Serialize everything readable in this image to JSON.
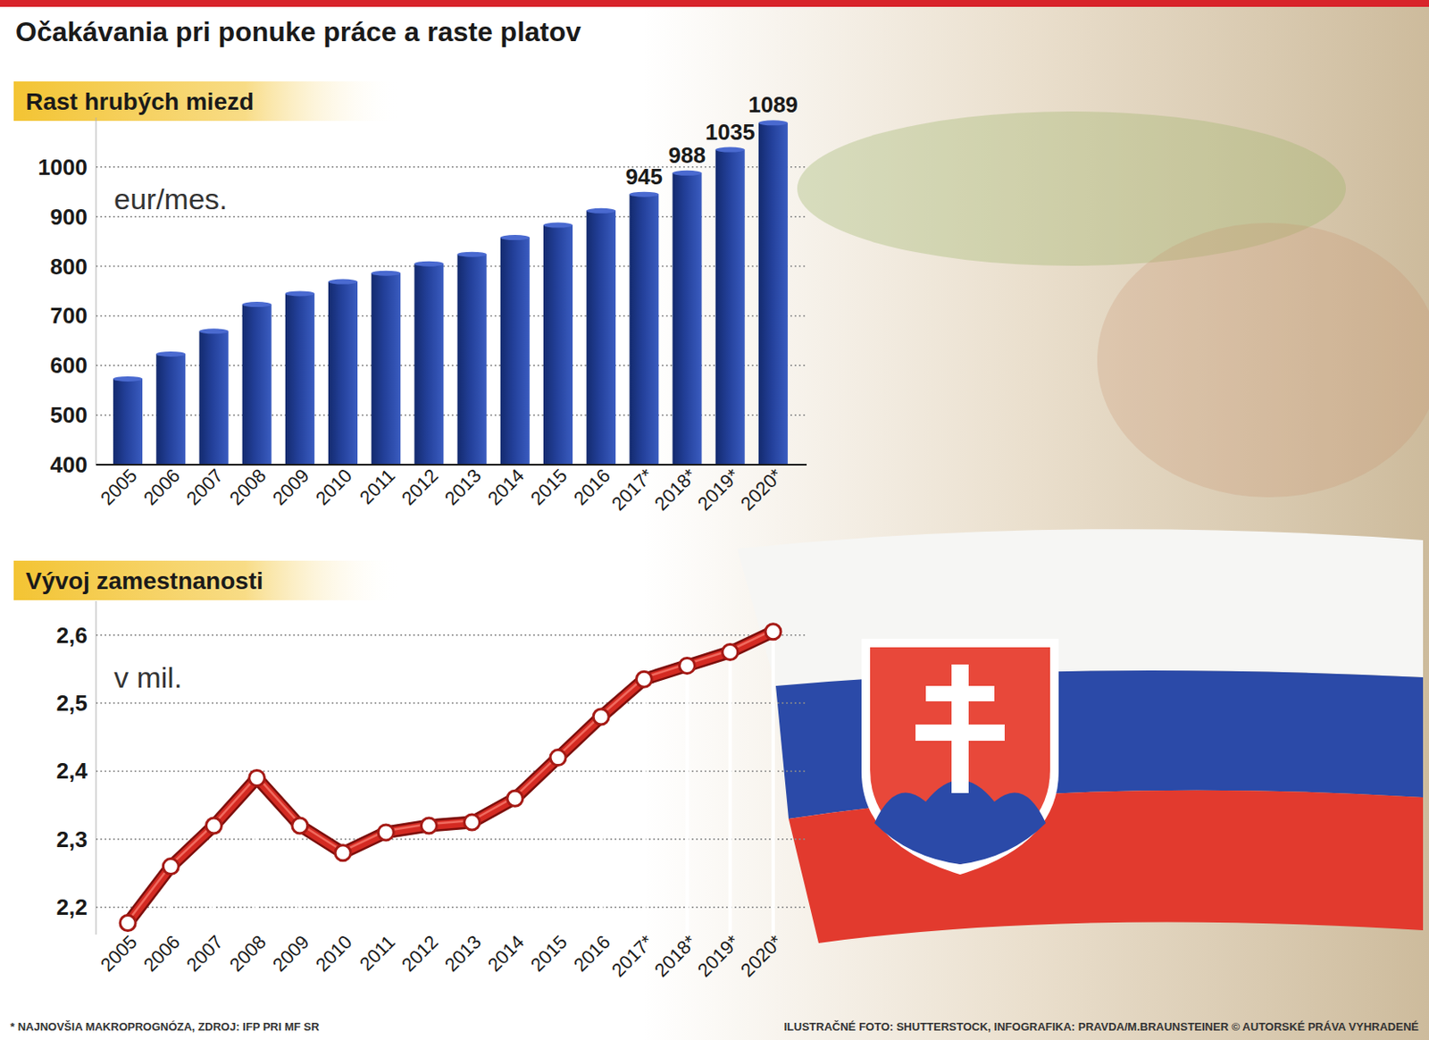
{
  "title": "Očakávania pri ponuke práce a raste platov",
  "chart_data": [
    {
      "type": "bar",
      "title": "Rast hrubých miezd",
      "y_label": "eur/mes.",
      "categories": [
        "2005",
        "2006",
        "2007",
        "2008",
        "2009",
        "2010",
        "2011",
        "2012",
        "2013",
        "2014",
        "2015",
        "2016",
        "2017*",
        "2018*",
        "2019*",
        "2020*"
      ],
      "values": [
        573,
        623,
        669,
        723,
        745,
        769,
        786,
        805,
        824,
        858,
        883,
        912,
        945,
        988,
        1035,
        1089
      ],
      "value_labels": [
        null,
        null,
        null,
        null,
        null,
        null,
        null,
        null,
        null,
        null,
        null,
        null,
        "945",
        "988",
        "1035",
        "1089"
      ],
      "color": "#23409a",
      "ylim": [
        400,
        1100
      ],
      "yticks": [
        400,
        500,
        600,
        700,
        800,
        900,
        1000
      ],
      "grid": true
    },
    {
      "type": "line",
      "title": "Vývoj zamestnanosti",
      "y_label": "v mil.",
      "categories": [
        "2005",
        "2006",
        "2007",
        "2008",
        "2009",
        "2010",
        "2011",
        "2012",
        "2013",
        "2014",
        "2015",
        "2016",
        "2017*",
        "2018*",
        "2019*",
        "2020*"
      ],
      "values": [
        2.177,
        2.26,
        2.32,
        2.39,
        2.32,
        2.28,
        2.31,
        2.32,
        2.325,
        2.36,
        2.42,
        2.48,
        2.535,
        2.555,
        2.575,
        2.605
      ],
      "color": "#d42a22",
      "marker": "circle",
      "ylim": [
        2.16,
        2.65
      ],
      "yticks": [
        {
          "value": 2.2,
          "label": "2,2"
        },
        {
          "value": 2.3,
          "label": "2,3"
        },
        {
          "value": 2.4,
          "label": "2,4"
        },
        {
          "value": 2.5,
          "label": "2,5"
        },
        {
          "value": 2.6,
          "label": "2,6"
        }
      ],
      "grid": true
    }
  ],
  "footnote": "* NAJNOVŠIA MAKROPROGNÓZA, ZDROJ: IFP PRI MF SR",
  "credit": "ILUSTRAČNÉ FOTO: SHUTTERSTOCK, INFOGRAFIKA: PRAVDA/M.BRAUNSTEINER © AUTORSKÉ PRÁVA VYHRADENÉ"
}
